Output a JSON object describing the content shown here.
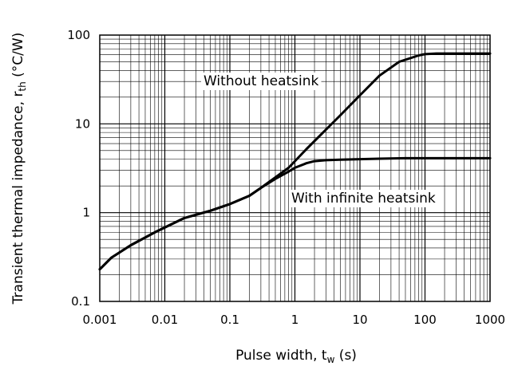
{
  "chart_data": {
    "type": "line",
    "xscale": "log",
    "yscale": "log",
    "xlim": [
      0.001,
      1000
    ],
    "ylim": [
      0.1,
      100
    ],
    "grid": true,
    "x_ticks": [
      "0.001",
      "0.01",
      "0.1",
      "1",
      "10",
      "100",
      "1000"
    ],
    "y_ticks": [
      "0.1",
      "1",
      "10",
      "100"
    ],
    "xlabel": {
      "main": "Pulse width, t",
      "sub": "w",
      "unit": " (s)"
    },
    "ylabel": {
      "main": "Transient thermal impedance, r",
      "sub": "th",
      "unit": " (°C/W)"
    },
    "series": [
      {
        "name": "Without heatsink",
        "x": [
          0.001,
          0.0015,
          0.003,
          0.007,
          0.02,
          0.05,
          0.1,
          0.2,
          0.3,
          0.5,
          0.8,
          1,
          1.5,
          3,
          5,
          10,
          20,
          40,
          80,
          100,
          150,
          300,
          1000
        ],
        "y": [
          0.23,
          0.31,
          0.43,
          0.6,
          0.87,
          1.05,
          1.25,
          1.55,
          1.9,
          2.5,
          3.2,
          3.8,
          5.2,
          8.6,
          12.5,
          21,
          35,
          50,
          59,
          61,
          62,
          62,
          62
        ]
      },
      {
        "name": "With infinite heatsink",
        "x": [
          0.001,
          0.0015,
          0.003,
          0.007,
          0.02,
          0.05,
          0.1,
          0.2,
          0.3,
          0.5,
          0.8,
          1,
          1.5,
          2,
          3,
          5,
          10,
          20,
          50,
          100,
          1000
        ],
        "y": [
          0.23,
          0.31,
          0.43,
          0.6,
          0.87,
          1.05,
          1.25,
          1.55,
          1.9,
          2.4,
          2.9,
          3.2,
          3.6,
          3.8,
          3.9,
          3.95,
          4.0,
          4.05,
          4.1,
          4.1,
          4.1
        ]
      }
    ]
  }
}
